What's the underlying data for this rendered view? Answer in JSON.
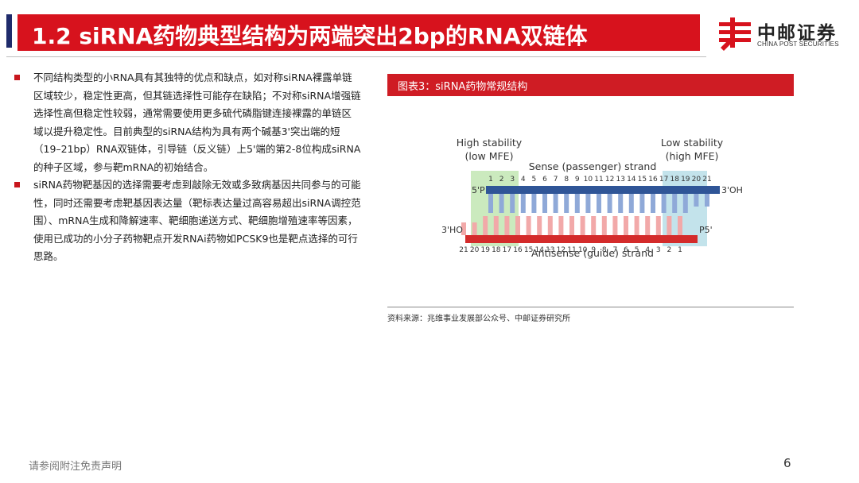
{
  "header": {
    "title": "1.2 siRNA药物典型结构为两端突出2bp的RNA双链体",
    "logo_cn": "中邮证券",
    "logo_en": "CHINA POST SECURITIES",
    "brand_red": "#d7121d",
    "accent_navy": "#1f2b6b"
  },
  "bullets": [
    "不同结构类型的小RNA具有其独特的优点和缺点，如对称siRNA裸露单链区域较少，稳定性更高，但其链选择性可能存在缺陷；不对称siRNA增强链选择性高但稳定性较弱，通常需要使用更多硫代磷脂键连接裸露的单链区域以提升稳定性。目前典型的siRNA结构为具有两个碱基3'突出端的短（19–21bp）RNA双链体，引导链（反义链）上5'端的第2-8位构成siRNA的种子区域，参与靶mRNA的初始结合。",
    "siRNA药物靶基因的选择需要考虑到敲除无效或多致病基因共同参与的可能性，同时还需要考虑靶基因表达量（靶标表达量过高容易超出siRNA调控范围）、mRNA生成和降解速率、靶细胞递送方式、靶细胞增殖速率等因素，使用已成功的小分子药物靶点开发RNAi药物如PCSK9也是靶点选择的可行思路。"
  ],
  "figure": {
    "header": "图表3：siRNA药物常规结构",
    "high_stability_1": "High stability",
    "high_stability_2": "(low MFE)",
    "low_stability_1": "Low stability",
    "low_stability_2": "(high MFE)",
    "sense_label": "Sense (passenger) strand",
    "antisense_label": "Antisense (guide) strand",
    "sense_5p": "5'P",
    "sense_3p": "3'OH",
    "anti_3p": "3'HO",
    "anti_5p": "P5'",
    "sense_numbers": [
      "1",
      "2",
      "3",
      "4",
      "5",
      "6",
      "7",
      "8",
      "9",
      "10",
      "11",
      "12",
      "13",
      "14",
      "15",
      "16",
      "17",
      "18",
      "19",
      "20",
      "21"
    ],
    "antisense_numbers": [
      "21",
      "20",
      "19",
      "18",
      "17",
      "16",
      "15",
      "14",
      "13",
      "12",
      "11",
      "10",
      "9",
      "8",
      "7",
      "6",
      "5",
      "4",
      "3",
      "2",
      "1"
    ],
    "colors": {
      "sense": "#2f5597",
      "antisense": "#d42b2b",
      "green_box": "#b9e3a8",
      "blue_box": "#b4dce6"
    }
  },
  "source": "资料来源：兆维事业发展部公众号、中邮证券研究所",
  "footer": {
    "disclaimer": "请参阅附注免责声明",
    "page": "6"
  }
}
